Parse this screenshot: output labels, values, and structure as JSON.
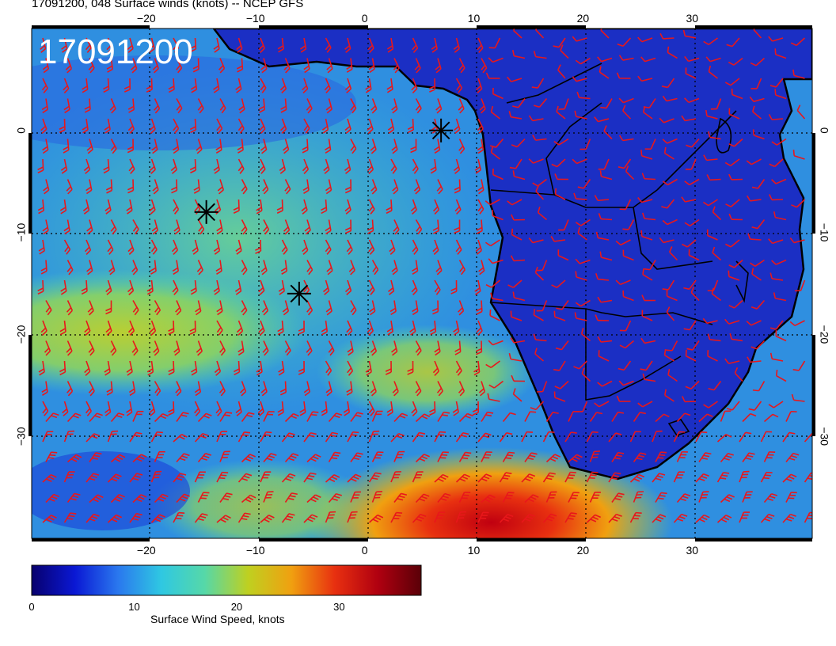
{
  "title": "17091200, 048 Surface winds (knots) -- NCEP GFS",
  "date_stamp": "17091200",
  "map": {
    "lon_ticks": [
      "−20",
      "−10",
      "0",
      "10",
      "20",
      "30"
    ],
    "lat_ticks": [
      "0",
      "−10",
      "−20",
      "−30"
    ],
    "lon_tick_values": [
      -20,
      -10,
      0,
      10,
      20,
      30
    ],
    "lat_tick_values": [
      0,
      -10,
      -20,
      -30
    ],
    "lon_range": [
      -30.5,
      41
    ],
    "lat_range": [
      -40,
      10
    ],
    "grid": true,
    "land_color": "#1b2fc4",
    "barb_color": "#e8171b",
    "marker_color": "#000000",
    "markers": [
      {
        "lon": 7.0,
        "lat": 0.0
      },
      {
        "lon": -14.5,
        "lat": -8.0
      },
      {
        "lon": -6.0,
        "lat": -16.0
      }
    ]
  },
  "colorbar": {
    "label": "Surface Wind Speed, knots",
    "ticks": [
      "0",
      "10",
      "20",
      "30"
    ],
    "tick_values": [
      0,
      10,
      20,
      30
    ],
    "range": [
      0,
      38
    ],
    "colors": [
      "#08006e",
      "#0a18d4",
      "#2a78ee",
      "#2fc8e2",
      "#56d8a8",
      "#bfd020",
      "#f0a010",
      "#e83010",
      "#b00010",
      "#5a0008"
    ]
  }
}
